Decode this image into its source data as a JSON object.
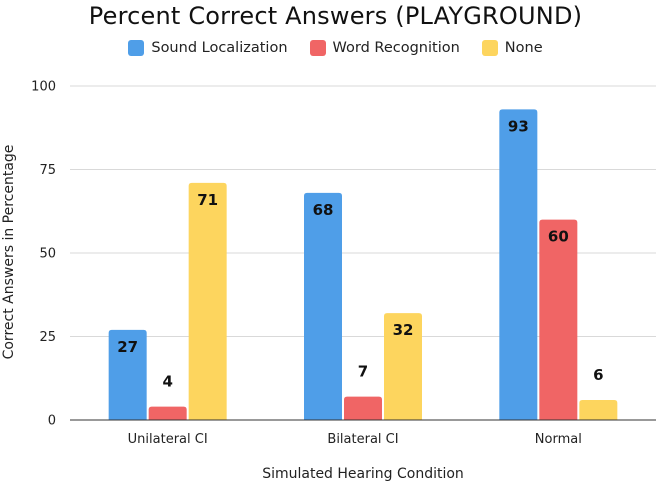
{
  "chart_data": {
    "type": "bar",
    "title": "Percent Correct Answers (PLAYGROUND)",
    "xlabel": "Simulated Hearing Condition",
    "ylabel": "Correct Answers in Percentage",
    "categories": [
      "Unilateral CI",
      "Bilateral CI",
      "Normal"
    ],
    "series": [
      {
        "name": "Sound Localization",
        "color": "#4f9ee8",
        "values": [
          27,
          68,
          93
        ]
      },
      {
        "name": "Word Recognition",
        "color": "#f06565",
        "values": [
          4,
          7,
          60
        ]
      },
      {
        "name": "None",
        "color": "#fdd55e",
        "values": [
          71,
          32,
          6
        ]
      }
    ],
    "ylim": [
      0,
      100
    ],
    "yticks": [
      "0",
      "25",
      "50",
      "75",
      "100"
    ],
    "grid": "horizontal",
    "legend_position": "top-center"
  }
}
